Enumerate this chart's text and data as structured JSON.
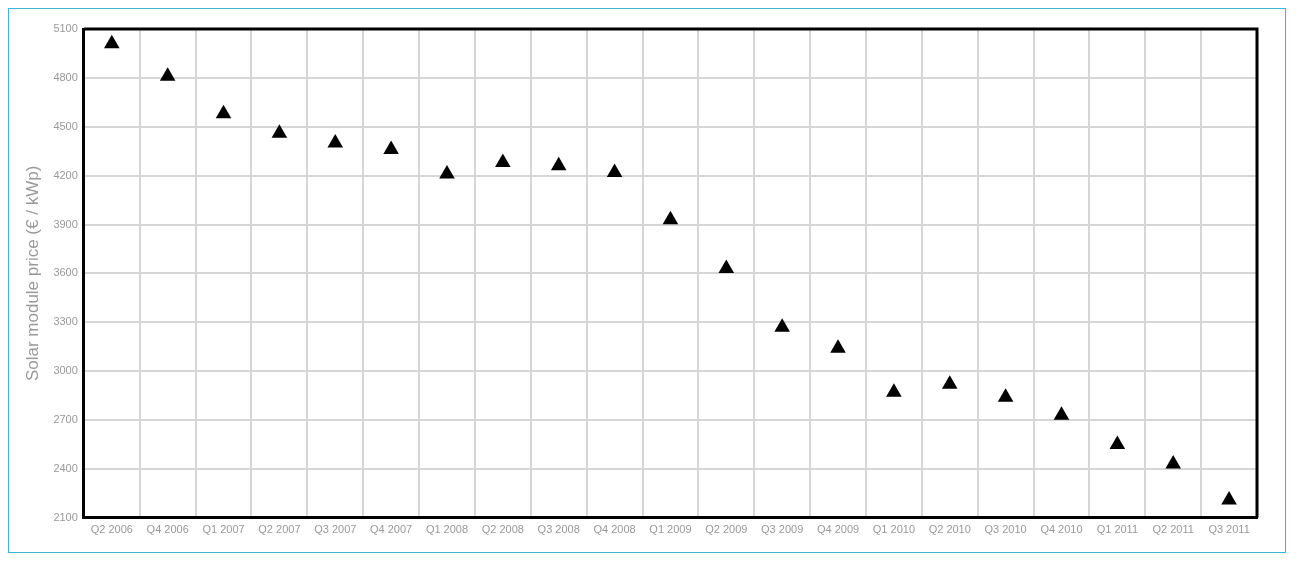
{
  "chart_data": {
    "type": "scatter",
    "ylabel": "Solar module price (€ / kWp)",
    "categories": [
      "Q2 2006",
      "Q4 2006",
      "Q1 2007",
      "Q2 2007",
      "Q3 2007",
      "Q4 2007",
      "Q1 2008",
      "Q2 2008",
      "Q3 2008",
      "Q4 2008",
      "Q1 2009",
      "Q2 2009",
      "Q3 2009",
      "Q4 2009",
      "Q1 2010",
      "Q2 2010",
      "Q3 2010",
      "Q4 2010",
      "Q1 2011",
      "Q2 2011",
      "Q3 2011"
    ],
    "series": [
      {
        "color": "#000000",
        "values": [
          5010,
          4810,
          4580,
          4460,
          4400,
          4360,
          4210,
          4280,
          4260,
          4220,
          3930,
          3630,
          3270,
          3140,
          2870,
          2920,
          2840,
          2730,
          2550,
          2430,
          2210
        ]
      }
    ],
    "ylim": [
      2100,
      5100
    ],
    "yticks": [
      2100,
      2400,
      2700,
      3000,
      3300,
      3600,
      3900,
      4200,
      4500,
      4800,
      5100
    ],
    "grid": true,
    "marker": "triangle"
  }
}
